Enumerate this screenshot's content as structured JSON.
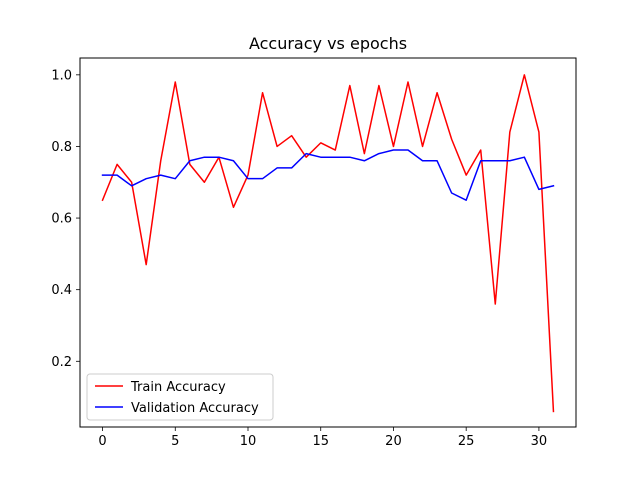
{
  "chart_data": {
    "type": "line",
    "title": "Accuracy vs epochs",
    "xlabel": "",
    "ylabel": "",
    "xlim": [
      -1.55,
      32.55
    ],
    "ylim": [
      0.0165,
      1.047
    ],
    "xticks": [
      0,
      5,
      10,
      15,
      20,
      25,
      30
    ],
    "yticks": [
      0.2,
      0.4,
      0.6,
      0.8,
      1.0
    ],
    "xtick_labels": [
      "0",
      "5",
      "10",
      "15",
      "20",
      "25",
      "30"
    ],
    "ytick_labels": [
      "0.2",
      "0.4",
      "0.6",
      "0.8",
      "1.0"
    ],
    "grid": false,
    "legend_position": "lower-left",
    "x": [
      0,
      1,
      2,
      3,
      4,
      5,
      6,
      7,
      8,
      9,
      10,
      11,
      12,
      13,
      14,
      15,
      16,
      17,
      18,
      19,
      20,
      21,
      22,
      23,
      24,
      25,
      26,
      27,
      28,
      29,
      30,
      31
    ],
    "series": [
      {
        "name": "Train Accuracy",
        "color": "#ff0000",
        "values": [
          0.65,
          0.75,
          0.7,
          0.47,
          0.76,
          0.98,
          0.75,
          0.7,
          0.77,
          0.63,
          0.72,
          0.95,
          0.8,
          0.83,
          0.77,
          0.81,
          0.79,
          0.97,
          0.78,
          0.97,
          0.8,
          0.98,
          0.8,
          0.95,
          0.82,
          0.72,
          0.79,
          0.36,
          0.84,
          1.0,
          0.84,
          0.06
        ]
      },
      {
        "name": "Validation Accuracy",
        "color": "#0000ff",
        "values": [
          0.72,
          0.72,
          0.69,
          0.71,
          0.72,
          0.71,
          0.76,
          0.77,
          0.77,
          0.76,
          0.71,
          0.71,
          0.74,
          0.74,
          0.78,
          0.77,
          0.77,
          0.77,
          0.76,
          0.78,
          0.79,
          0.79,
          0.76,
          0.76,
          0.67,
          0.65,
          0.76,
          0.76,
          0.76,
          0.77,
          0.68,
          0.69
        ]
      }
    ]
  }
}
